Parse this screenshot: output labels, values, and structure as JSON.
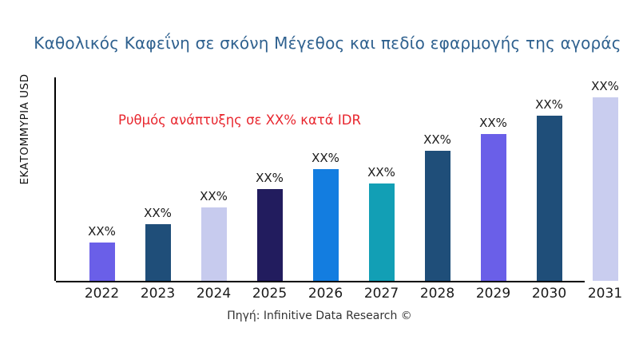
{
  "page": {
    "title": "Καθολικός Καφεΐνη σε σκόνη Μέγεθος και πεδίο εφαρμογής της αγοράς",
    "title_color": "#2f618f",
    "annotation": "Ρυθμός ανάπτυξης σε XX% κατά IDR",
    "annotation_color": "#e8262e",
    "y_axis_label": "ΕΚΑΤΟΜΜΥΡΙΑ USD",
    "source": "Πηγή: Infinitive Data Research ©",
    "background_color": "#ffffff",
    "axis_color": "#000000"
  },
  "chart_data": {
    "type": "bar",
    "title": "Καθολικός Καφεΐνη σε σκόνη Μέγεθος και πεδίο εφαρμογής της αγοράς",
    "xlabel": "",
    "ylabel": "ΕΚΑΤΟΜΜΥΡΙΑ USD",
    "annotation": "Ρυθμός ανάπτυξης σε XX% κατά IDR",
    "source": "Πηγή: Infinitive Data Research ©",
    "categories": [
      "2022",
      "2023",
      "2024",
      "2025",
      "2026",
      "2027",
      "2028",
      "2029",
      "2030",
      "2031"
    ],
    "values_relative_pct": [
      21,
      31,
      40,
      50,
      61,
      53,
      71,
      80,
      90,
      100
    ],
    "bar_labels": [
      "XX%",
      "XX%",
      "XX%",
      "XX%",
      "XX%",
      "XX%",
      "XX%",
      "XX%",
      "XX%",
      "XX%"
    ],
    "bar_colors": [
      "#6a5fe8",
      "#1f4e79",
      "#c7cbee",
      "#221c5e",
      "#137de0",
      "#129fb5",
      "#1f4e79",
      "#6a5fe8",
      "#1f4e79",
      "#c9cdef"
    ],
    "ylim_note": "no numeric axis ticks shown; values are placeholders (XX%)",
    "grid": false,
    "legend": false
  }
}
